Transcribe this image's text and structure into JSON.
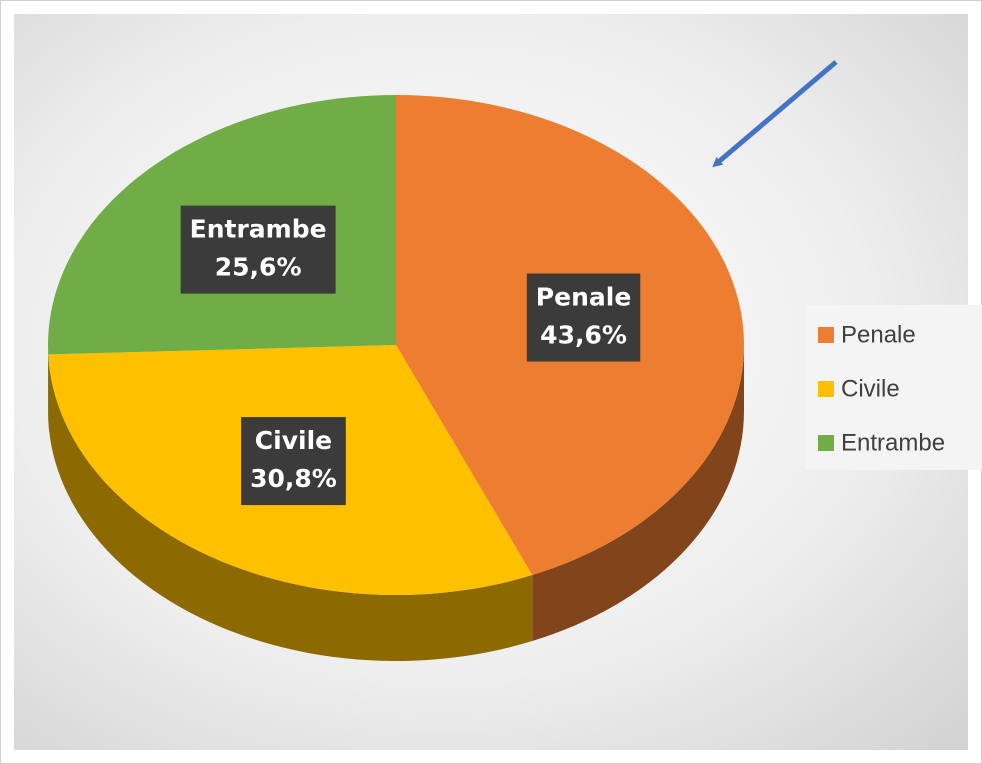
{
  "chart_data": {
    "type": "pie",
    "categories": [
      "Penale",
      "Civile",
      "Entrambe"
    ],
    "values": [
      43.6,
      30.8,
      25.6
    ],
    "value_labels": [
      "43,6%",
      "30,8%",
      "25,6%"
    ],
    "colors": [
      "#ED7D31",
      "#FFC000",
      "#70AD47"
    ],
    "legend": "right"
  }
}
